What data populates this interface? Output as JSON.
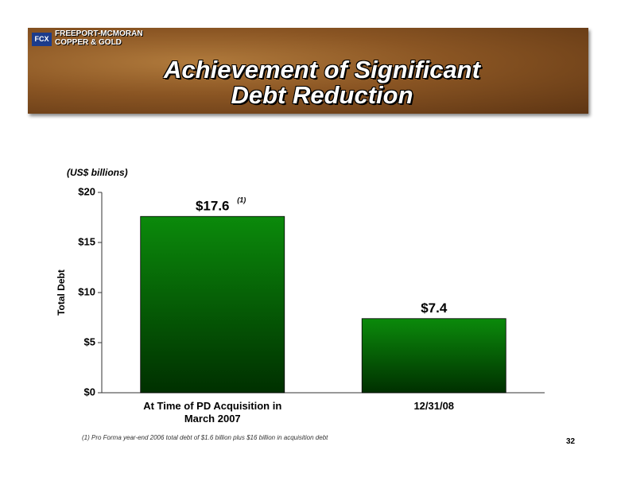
{
  "company": {
    "name": "FREEPORT-MCMORAN",
    "subname": "COPPER & GOLD",
    "logo": "FCX"
  },
  "chart_data": {
    "type": "bar",
    "title": "Achievement of Significant Debt Reduction",
    "unit_label": "(US$ billions)",
    "y_label": "Total Debt",
    "categories": [
      "At Time of PD Acquisition in March 2007",
      "12/31/08"
    ],
    "values": [
      17.6,
      7.4
    ],
    "value_labels": [
      "$17.6",
      "$7.4"
    ],
    "annotations": [
      "(1)"
    ],
    "color": "#0b8a0b",
    "ylim": [
      0,
      20
    ],
    "yticks": [
      {
        "value": 0,
        "label": "$0"
      },
      {
        "value": 5,
        "label": "$5"
      },
      {
        "value": 10,
        "label": "$10"
      },
      {
        "value": 15,
        "label": "$15"
      },
      {
        "value": 20,
        "label": "$20"
      }
    ]
  },
  "footnote": "(1) Pro Forma year-end 2006 total debt of $1.6 billion plus $16 billion in acquisition debt",
  "page_number": 32
}
